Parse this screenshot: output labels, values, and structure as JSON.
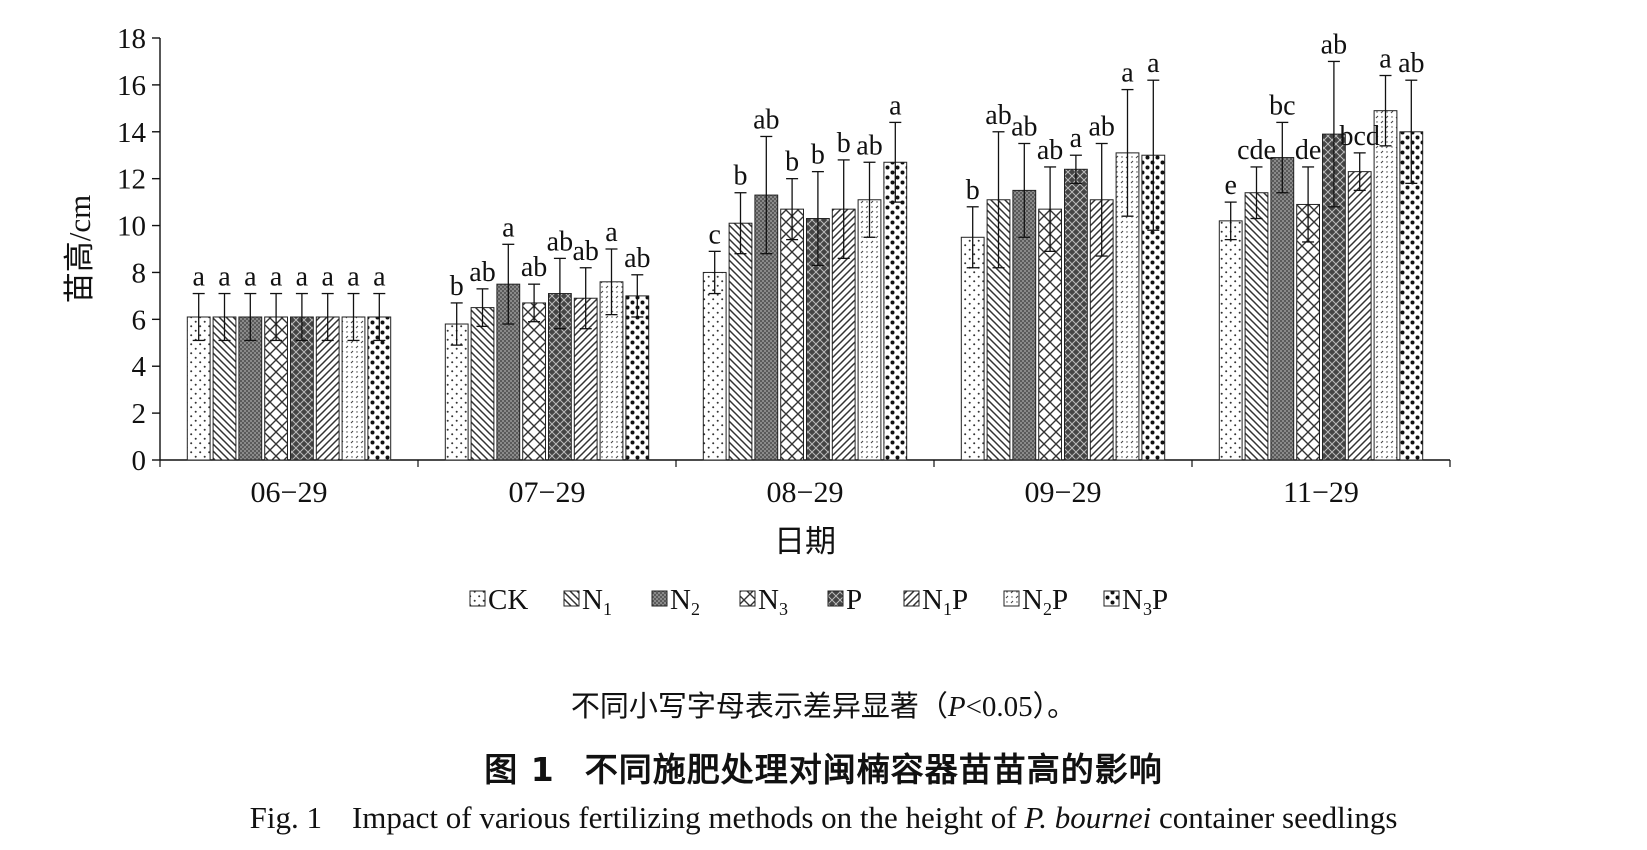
{
  "chart_data": {
    "type": "bar",
    "categories": [
      "06−29",
      "07−29",
      "08−29",
      "09−29",
      "11−29"
    ],
    "xlabel": "日期",
    "ylabel": "苗高/cm",
    "ylim": [
      0,
      18
    ],
    "yticks": [
      0,
      2,
      4,
      6,
      8,
      10,
      12,
      14,
      16,
      18
    ],
    "grid": false,
    "legend_position": "bottom-center",
    "series": [
      {
        "name": "CK",
        "base": "CK",
        "sub": "",
        "suffix": "",
        "pattern": "pat-ck",
        "values": [
          6.1,
          5.8,
          8.0,
          9.5,
          10.2
        ],
        "errors": [
          1.0,
          0.9,
          0.9,
          1.3,
          0.8
        ],
        "labels": [
          "a",
          "b",
          "c",
          "b",
          "e"
        ]
      },
      {
        "name": "N1",
        "base": "N",
        "sub": "1",
        "suffix": "",
        "pattern": "pat-n1",
        "values": [
          6.1,
          6.5,
          10.1,
          11.1,
          11.4
        ],
        "errors": [
          1.0,
          0.8,
          1.3,
          2.9,
          1.1
        ],
        "labels": [
          "a",
          "ab",
          "b",
          "ab",
          "cde"
        ]
      },
      {
        "name": "N2",
        "base": "N",
        "sub": "2",
        "suffix": "",
        "pattern": "pat-n2",
        "values": [
          6.1,
          7.5,
          11.3,
          11.5,
          12.9
        ],
        "errors": [
          1.0,
          1.7,
          2.5,
          2.0,
          1.5
        ],
        "labels": [
          "a",
          "a",
          "ab",
          "ab",
          "bc"
        ]
      },
      {
        "name": "N3",
        "base": "N",
        "sub": "3",
        "suffix": "",
        "pattern": "pat-n3",
        "values": [
          6.1,
          6.7,
          10.7,
          10.7,
          10.9
        ],
        "errors": [
          1.0,
          0.8,
          1.3,
          1.8,
          1.6
        ],
        "labels": [
          "a",
          "ab",
          "b",
          "ab",
          "de"
        ]
      },
      {
        "name": "P",
        "base": "P",
        "sub": "",
        "suffix": "",
        "pattern": "pat-p",
        "values": [
          6.1,
          7.1,
          10.3,
          12.4,
          13.9
        ],
        "errors": [
          1.0,
          1.5,
          2.0,
          0.6,
          3.1
        ],
        "labels": [
          "a",
          "ab",
          "b",
          "a",
          "ab"
        ]
      },
      {
        "name": "N1P",
        "base": "N",
        "sub": "1",
        "suffix": "P",
        "pattern": "pat-n1p",
        "values": [
          6.1,
          6.9,
          10.7,
          11.1,
          12.3
        ],
        "errors": [
          1.0,
          1.3,
          2.1,
          2.4,
          0.8
        ],
        "labels": [
          "a",
          "ab",
          "b",
          "ab",
          "bcd"
        ]
      },
      {
        "name": "N2P",
        "base": "N",
        "sub": "2",
        "suffix": "P",
        "pattern": "pat-n2p",
        "values": [
          6.1,
          7.6,
          11.1,
          13.1,
          14.9
        ],
        "errors": [
          1.0,
          1.4,
          1.6,
          2.7,
          1.5
        ],
        "labels": [
          "a",
          "a",
          "ab",
          "a",
          "a"
        ]
      },
      {
        "name": "N3P",
        "base": "N",
        "sub": "3",
        "suffix": "P",
        "pattern": "pat-n3p",
        "values": [
          6.1,
          7.0,
          12.7,
          13.0,
          14.0
        ],
        "errors": [
          1.0,
          0.9,
          1.7,
          3.2,
          2.2
        ],
        "labels": [
          "a",
          "ab",
          "a",
          "a",
          "ab"
        ]
      }
    ]
  },
  "captions": {
    "note_before": "不同小写字母表示差异显著（",
    "note_italic": "P",
    "note_after": "<0.05）。",
    "title_cn_label": "图 1",
    "title_cn_text": "不同施肥处理对闽楠容器苗苗高的影响",
    "title_en_label": "Fig. 1",
    "title_en_before": "Impact of various fertilizing methods on the height of ",
    "title_en_italic": "P. bournei",
    "title_en_after": " container seedlings"
  }
}
